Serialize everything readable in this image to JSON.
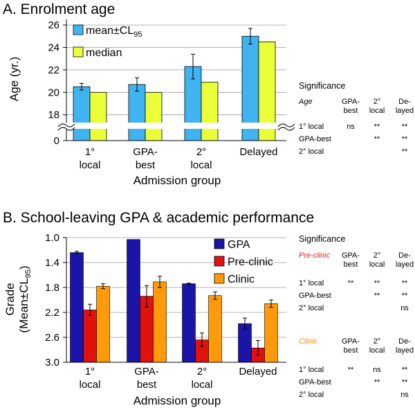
{
  "chart_data": [
    {
      "type": "bar",
      "title": "A. Enrolment age",
      "xlabel": "Admission group",
      "ylabel": "Age (yr.)",
      "categories": [
        [
          "1°",
          "local"
        ],
        [
          "GPA-",
          "best"
        ],
        [
          "2°",
          "local"
        ],
        [
          "Delayed"
        ]
      ],
      "ylim": [
        17,
        26.5
      ],
      "yticks": [
        "26",
        "24",
        "22",
        "20",
        "18",
        "0"
      ],
      "axis_break": true,
      "grid": true,
      "legend_position": "top-left",
      "series": [
        {
          "name": "mean±CL",
          "name_sub": "95",
          "color": "#40b4f0",
          "values": [
            20.5,
            20.7,
            22.3,
            25.0
          ],
          "err": [
            0.3,
            0.6,
            1.1,
            0.7
          ]
        },
        {
          "name": "median",
          "color": "#eaff38",
          "values": [
            20.0,
            20.0,
            20.9,
            24.5
          ]
        }
      ],
      "significance": {
        "title": "Significance",
        "subtitle": "Age",
        "col_headers": [
          [
            "GPA-",
            "best"
          ],
          [
            "2°",
            "local"
          ],
          [
            "De-",
            "layed"
          ]
        ],
        "rows": [
          {
            "label": "1° local",
            "cells": [
              "ns",
              "**",
              "**"
            ]
          },
          {
            "label": "GPA-best",
            "cells": [
              "",
              "**",
              "**"
            ]
          },
          {
            "label": "2° local",
            "cells": [
              "",
              "",
              "**"
            ]
          }
        ]
      }
    },
    {
      "type": "bar",
      "title": "B. School-leaving GPA & academic performance",
      "xlabel": "Admission group",
      "ylabel": "Grade",
      "ylabel2": "(Mean±CL",
      "ylabel2_sub": "95",
      "ylabel2_end": ")",
      "categories": [
        [
          "1°",
          "local"
        ],
        [
          "GPA-",
          "best"
        ],
        [
          "2°",
          "local"
        ],
        [
          "Delayed"
        ]
      ],
      "ylim": [
        3.0,
        1.0
      ],
      "yticks": [
        "1.0",
        "1.4",
        "1.8",
        "2.2",
        "2.6",
        "3.0"
      ],
      "inverted_axis": true,
      "grid": true,
      "legend_position": "top-right",
      "series": [
        {
          "name": "GPA",
          "color": "#1a14a8",
          "values": [
            1.24,
            1.03,
            1.74,
            2.38
          ],
          "err": [
            0.02,
            0.0,
            0.01,
            0.09
          ]
        },
        {
          "name": "Pre-clinic",
          "color": "#e0120e",
          "values": [
            2.16,
            1.94,
            2.64,
            2.77
          ],
          "err": [
            0.09,
            0.17,
            0.11,
            0.12
          ]
        },
        {
          "name": "Clinic",
          "color": "#ff9a0a",
          "values": [
            1.78,
            1.71,
            1.93,
            2.06
          ],
          "err": [
            0.04,
            0.09,
            0.06,
            0.06
          ]
        }
      ],
      "significance": [
        {
          "title": "Significance",
          "subtitle": "Pre-clinic",
          "subtitle_color": "#e02020",
          "col_headers": [
            [
              "GPA-",
              "best"
            ],
            [
              "2°",
              "local"
            ],
            [
              "De-",
              "layed"
            ]
          ],
          "rows": [
            {
              "label": "1° local",
              "cells": [
                "**",
                "**",
                "**"
              ]
            },
            {
              "label": "GPA-best",
              "cells": [
                "",
                "**",
                "**"
              ]
            },
            {
              "label": "2° local",
              "cells": [
                "",
                "",
                "ns"
              ]
            }
          ]
        },
        {
          "title": "",
          "subtitle": "Clinic",
          "subtitle_color": "#f08a10",
          "col_headers": [
            [
              "GPA-",
              "best"
            ],
            [
              "2°",
              "local"
            ],
            [
              "De-",
              "layed"
            ]
          ],
          "rows": [
            {
              "label": "1° local",
              "cells": [
                "**",
                "ns",
                "**"
              ]
            },
            {
              "label": "GPA-best",
              "cells": [
                "",
                "**",
                "**"
              ]
            },
            {
              "label": "2° local",
              "cells": [
                "",
                "",
                "ns"
              ]
            }
          ]
        }
      ]
    }
  ]
}
